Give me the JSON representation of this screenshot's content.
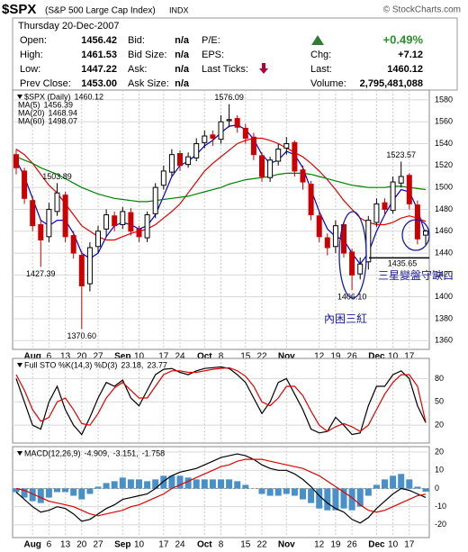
{
  "header": {
    "symbol": "$SPX",
    "name": "(S&P 500 Large Cap Index)",
    "exchange": "INDX",
    "credit": "© StockCharts.com",
    "date": "Thursday 20-Dec-2007",
    "col1": [
      [
        "Open:",
        "1456.42"
      ],
      [
        "High:",
        "1461.53"
      ],
      [
        "Low:",
        "1447.22"
      ],
      [
        "Prev Close:",
        "1453.00"
      ]
    ],
    "col2": [
      [
        "Bid:",
        "n/a"
      ],
      [
        "Bid Size:",
        "n/a"
      ],
      [
        "Ask:",
        "n/a"
      ],
      [
        "Ask Size:",
        "n/a"
      ]
    ],
    "col3": [
      "P/E:",
      "EPS:",
      "Last Ticks:"
    ],
    "change_pct": "+0.49%",
    "col4": [
      [
        "Chg:",
        "+7.12"
      ],
      [
        "Last:",
        "1460.12"
      ],
      [
        "Volume:",
        "2,795,481,088"
      ]
    ]
  },
  "chart_data": [
    {
      "type": "candlestick",
      "title": "$SPX (Daily)",
      "categories": [
        null,
        null,
        "Aug",
        null,
        "6",
        null,
        "13",
        null,
        "20",
        null,
        "27",
        null,
        null,
        "Sep",
        null,
        "10",
        null,
        null,
        "17",
        null,
        "24",
        null,
        null,
        "Oct",
        null,
        "8",
        null,
        null,
        "15",
        null,
        "22",
        null,
        null,
        "Nov",
        null,
        null,
        null,
        "12",
        null,
        "19",
        null,
        "26",
        null,
        null,
        "Dec",
        null,
        "10",
        null,
        "17",
        null,
        null
      ],
      "open": [
        1530,
        1515,
        1488,
        1466,
        1455,
        1478,
        1493,
        1456,
        1438,
        1412,
        1446,
        1462,
        1474,
        1466,
        1477,
        1462,
        1454,
        1476,
        1502,
        1514,
        1531,
        1521,
        1527,
        1541,
        1548,
        1544,
        1561,
        1563,
        1554,
        1546,
        1529,
        1509,
        1524,
        1536,
        1541,
        1516,
        1503,
        1474,
        1454,
        1446,
        1466,
        1441,
        1421,
        1432,
        1468,
        1486,
        1479,
        1504,
        1511,
        1484,
        1456.42
      ],
      "high": [
        1535,
        1518,
        1492,
        1470,
        1486,
        1503.89,
        1496,
        1460,
        1442,
        1450,
        1465,
        1480,
        1478,
        1482,
        1481,
        1465,
        1478,
        1504,
        1520,
        1535,
        1534,
        1532,
        1545,
        1552,
        1552,
        1566,
        1576.09,
        1566,
        1558,
        1550,
        1532,
        1528,
        1540,
        1546,
        1543,
        1520,
        1506,
        1478,
        1458,
        1470,
        1468,
        1444,
        1436,
        1474,
        1490,
        1490,
        1510,
        1523.57,
        1513,
        1488,
        1461.53
      ],
      "low": [
        1512,
        1485,
        1460,
        1427.39,
        1450,
        1474,
        1450,
        1435,
        1370.6,
        1405,
        1440,
        1455,
        1460,
        1462,
        1456,
        1450,
        1450,
        1472,
        1498,
        1510,
        1515,
        1518,
        1524,
        1536,
        1538,
        1540,
        1555,
        1550,
        1540,
        1525,
        1505,
        1505,
        1520,
        1530,
        1510,
        1498,
        1470,
        1450,
        1438,
        1440,
        1436,
        1406.1,
        1416,
        1425,
        1464,
        1474,
        1476,
        1500,
        1480,
        1448,
        1447.22
      ],
      "close": [
        1518,
        1490,
        1465,
        1452,
        1480,
        1495,
        1455,
        1440,
        1410,
        1445,
        1460,
        1475,
        1465,
        1478,
        1460,
        1455,
        1475,
        1500,
        1515,
        1530,
        1520,
        1528,
        1540,
        1547,
        1545,
        1560,
        1562,
        1555,
        1545,
        1530,
        1510,
        1525,
        1535,
        1540,
        1515,
        1505,
        1475,
        1455,
        1445,
        1465,
        1440,
        1420,
        1430,
        1470,
        1485,
        1480,
        1505,
        1510,
        1485,
        1453,
        1460.12
      ],
      "high_value_labels": [
        null,
        null,
        null,
        null,
        null,
        "1503.89",
        null,
        null,
        null,
        null,
        null,
        null,
        null,
        null,
        null,
        null,
        null,
        null,
        null,
        null,
        null,
        null,
        null,
        null,
        null,
        null,
        "1576.09",
        null,
        null,
        null,
        null,
        null,
        null,
        null,
        null,
        null,
        null,
        null,
        null,
        null,
        null,
        null,
        null,
        null,
        null,
        null,
        null,
        "1523.57",
        null,
        null,
        null
      ],
      "low_value_labels": [
        null,
        null,
        null,
        "1427.39",
        null,
        null,
        null,
        null,
        "1370.60",
        null,
        null,
        null,
        null,
        null,
        null,
        null,
        null,
        null,
        null,
        null,
        null,
        null,
        null,
        null,
        null,
        null,
        null,
        null,
        null,
        null,
        null,
        null,
        null,
        null,
        null,
        null,
        null,
        null,
        null,
        null,
        null,
        "1406.10",
        null,
        null,
        null,
        null,
        null,
        null,
        null,
        null,
        null
      ],
      "up_color": "#000000",
      "down_color": "#cc0000",
      "series": [
        {
          "name": "MA(5)",
          "color": "#0000cc",
          "values": [
            1525,
            1510,
            1490,
            1470,
            1465,
            1470,
            1470,
            1458,
            1440,
            1435,
            1440,
            1455,
            1465,
            1468,
            1466,
            1462,
            1465,
            1475,
            1492,
            1510,
            1520,
            1524,
            1530,
            1538,
            1543,
            1550,
            1556,
            1557,
            1553,
            1544,
            1530,
            1522,
            1525,
            1533,
            1530,
            1518,
            1498,
            1478,
            1462,
            1455,
            1452,
            1440,
            1430,
            1440,
            1460,
            1475,
            1488,
            1498,
            1496,
            1480,
            1456.39
          ]
        },
        {
          "name": "MA(20)",
          "color": "#e00000",
          "values": [
            1535,
            1530,
            1522,
            1512,
            1502,
            1495,
            1485,
            1475,
            1465,
            1460,
            1455,
            1452,
            1452,
            1455,
            1458,
            1460,
            1462,
            1466,
            1472,
            1478,
            1485,
            1495,
            1505,
            1515,
            1522,
            1528,
            1534,
            1540,
            1543,
            1545,
            1545,
            1543,
            1540,
            1536,
            1532,
            1528,
            1522,
            1515,
            1507,
            1498,
            1488,
            1480,
            1472,
            1468,
            1466,
            1466,
            1468,
            1472,
            1474,
            1472,
            1468.94
          ]
        },
        {
          "name": "MA(60)",
          "color": "#008000",
          "values": [
            1528,
            1525,
            1522,
            1518,
            1515,
            1512,
            1508,
            1504,
            1500,
            1497,
            1494,
            1492,
            1490,
            1489,
            1488,
            1487,
            1487,
            1488,
            1489,
            1490,
            1491,
            1492,
            1494,
            1496,
            1498,
            1500,
            1503,
            1505,
            1507,
            1508,
            1509,
            1510,
            1512,
            1513,
            1513,
            1513,
            1512,
            1510,
            1508,
            1506,
            1504,
            1502,
            1501,
            1500,
            1500,
            1500,
            1501,
            1501,
            1500,
            1499,
            1498.07
          ]
        }
      ],
      "ylim": [
        1352,
        1589
      ],
      "yticks": [
        1360,
        1380,
        1400,
        1420,
        1440,
        1460,
        1480,
        1500,
        1520,
        1540,
        1560,
        1580
      ],
      "grid": true,
      "support": 1435.65,
      "annotations": [
        "三星變盤守缺口",
        "內困三紅"
      ]
    },
    {
      "type": "line",
      "title": "Full STO %K(14,3) %D(3)",
      "series": [
        {
          "name": "%K",
          "color": "#000000",
          "last_label": "23.18,",
          "values": [
            80,
            50,
            20,
            15,
            50,
            70,
            40,
            20,
            8,
            30,
            55,
            75,
            70,
            78,
            55,
            45,
            65,
            85,
            92,
            93,
            88,
            85,
            90,
            93,
            94,
            95,
            93,
            85,
            75,
            55,
            35,
            50,
            75,
            80,
            60,
            40,
            15,
            10,
            12,
            30,
            20,
            8,
            10,
            45,
            70,
            70,
            85,
            90,
            80,
            45,
            23.18
          ]
        },
        {
          "name": "%D",
          "color": "#e00000",
          "last_label": "23.77",
          "values": [
            85,
            65,
            40,
            25,
            30,
            50,
            55,
            40,
            22,
            20,
            35,
            55,
            68,
            75,
            65,
            55,
            55,
            70,
            85,
            90,
            90,
            88,
            88,
            90,
            92,
            93,
            94,
            90,
            83,
            70,
            50,
            45,
            55,
            70,
            70,
            58,
            38,
            20,
            12,
            18,
            22,
            18,
            12,
            20,
            40,
            60,
            75,
            85,
            85,
            70,
            23.77
          ]
        }
      ],
      "ylim": [
        -3,
        106
      ],
      "yticks": [
        20,
        50,
        80
      ],
      "grid": true
    },
    {
      "type": "line",
      "title": "MACD(12,26,9)",
      "categories": [
        null,
        null,
        "Aug",
        null,
        "6",
        null,
        "13",
        null,
        "20",
        null,
        "27",
        null,
        null,
        "Sep",
        null,
        "10",
        null,
        null,
        "17",
        null,
        "24",
        null,
        null,
        "Oct",
        null,
        "8",
        null,
        null,
        "15",
        null,
        "22",
        null,
        null,
        "Nov",
        null,
        null,
        null,
        "12",
        null,
        "19",
        null,
        "26",
        null,
        null,
        "Dec",
        null,
        "10",
        null,
        "17",
        null,
        null
      ],
      "series": [
        {
          "name": "MACD",
          "color": "#000000",
          "last_label": "-4.909,",
          "values": [
            -2,
            -6,
            -10,
            -13,
            -12,
            -10,
            -11,
            -14,
            -18,
            -17,
            -14,
            -11,
            -9,
            -6,
            -5,
            -4,
            -3,
            0,
            4,
            7,
            9,
            10,
            11,
            13,
            15,
            17,
            18,
            19,
            18,
            16,
            13,
            11,
            10,
            10,
            8,
            5,
            1,
            -4,
            -8,
            -11,
            -13,
            -17,
            -19,
            -16,
            -11,
            -7,
            -3,
            0,
            -1,
            -3,
            -4.909
          ]
        },
        {
          "name": "Signal",
          "color": "#e00000",
          "last_label": "-3.151,",
          "values": [
            0,
            -1,
            -3,
            -5,
            -7,
            -8,
            -9,
            -10,
            -12,
            -14,
            -15,
            -14,
            -13,
            -12,
            -10,
            -9,
            -7,
            -5,
            -3,
            0,
            2,
            4,
            6,
            8,
            10,
            12,
            13,
            15,
            16,
            16,
            16,
            15,
            14,
            13,
            12,
            11,
            9,
            7,
            4,
            1,
            -2,
            -5,
            -9,
            -12,
            -13,
            -12,
            -10,
            -8,
            -6,
            -4,
            -3.151
          ]
        },
        {
          "name": "Histogram",
          "type": "bar",
          "color": "#4a90c8",
          "values": [
            -2,
            -5,
            -7,
            -8,
            -5,
            -2,
            -2,
            -4,
            -6,
            -3,
            1,
            3,
            4,
            6,
            5,
            5,
            4,
            5,
            7,
            7,
            7,
            6,
            5,
            5,
            5,
            5,
            5,
            4,
            2,
            0,
            -3,
            -4,
            -4,
            -3,
            -4,
            -6,
            -8,
            -11,
            -12,
            -12,
            -11,
            -12,
            -10,
            -4,
            2,
            5,
            7,
            8,
            5,
            1,
            -1.758
          ]
        }
      ],
      "ylim": [
        -27,
        23
      ],
      "yticks": [
        -20,
        -10,
        0,
        10,
        20
      ],
      "grid": true
    }
  ]
}
